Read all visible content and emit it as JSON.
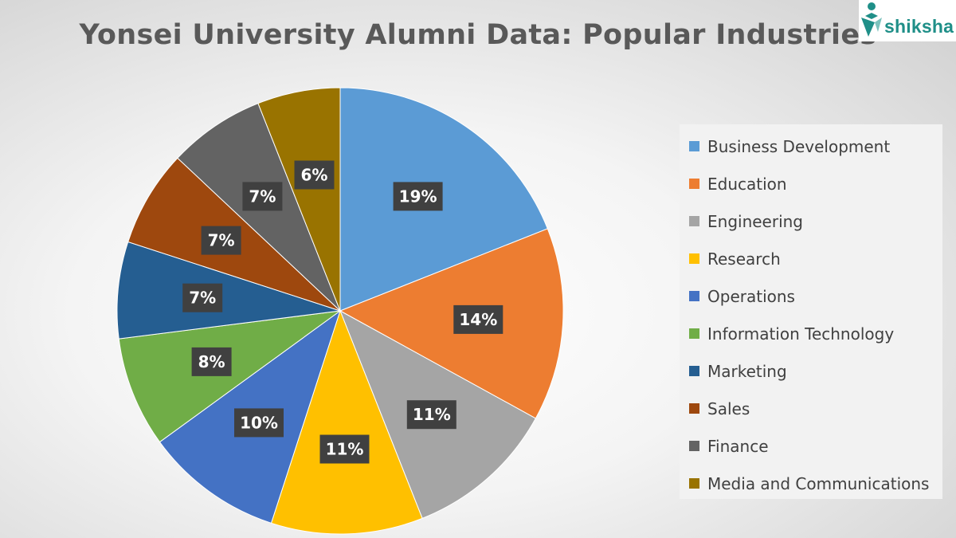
{
  "chart_data": {
    "type": "pie",
    "title": "Yonsei University Alumni Data: Popular Industries",
    "categories": [
      "Business Development",
      "Education",
      "Engineering",
      "Research",
      "Operations",
      "Information Technology",
      "Marketing",
      "Sales",
      "Finance",
      "Media and Communications"
    ],
    "values": [
      19,
      14,
      11,
      11,
      10,
      8,
      7,
      7,
      7,
      6
    ],
    "labels": [
      "19%",
      "14%",
      "11%",
      "11%",
      "10%",
      "8%",
      "7%",
      "7%",
      "7%",
      "6%"
    ],
    "colors": [
      "#5b9bd5",
      "#ed7d31",
      "#a5a5a5",
      "#ffc000",
      "#4472c4",
      "#70ad47",
      "#255e91",
      "#9e480e",
      "#636363",
      "#997300"
    ],
    "unit": "%",
    "legend_position": "right"
  },
  "logo": {
    "text": "shiksha"
  }
}
